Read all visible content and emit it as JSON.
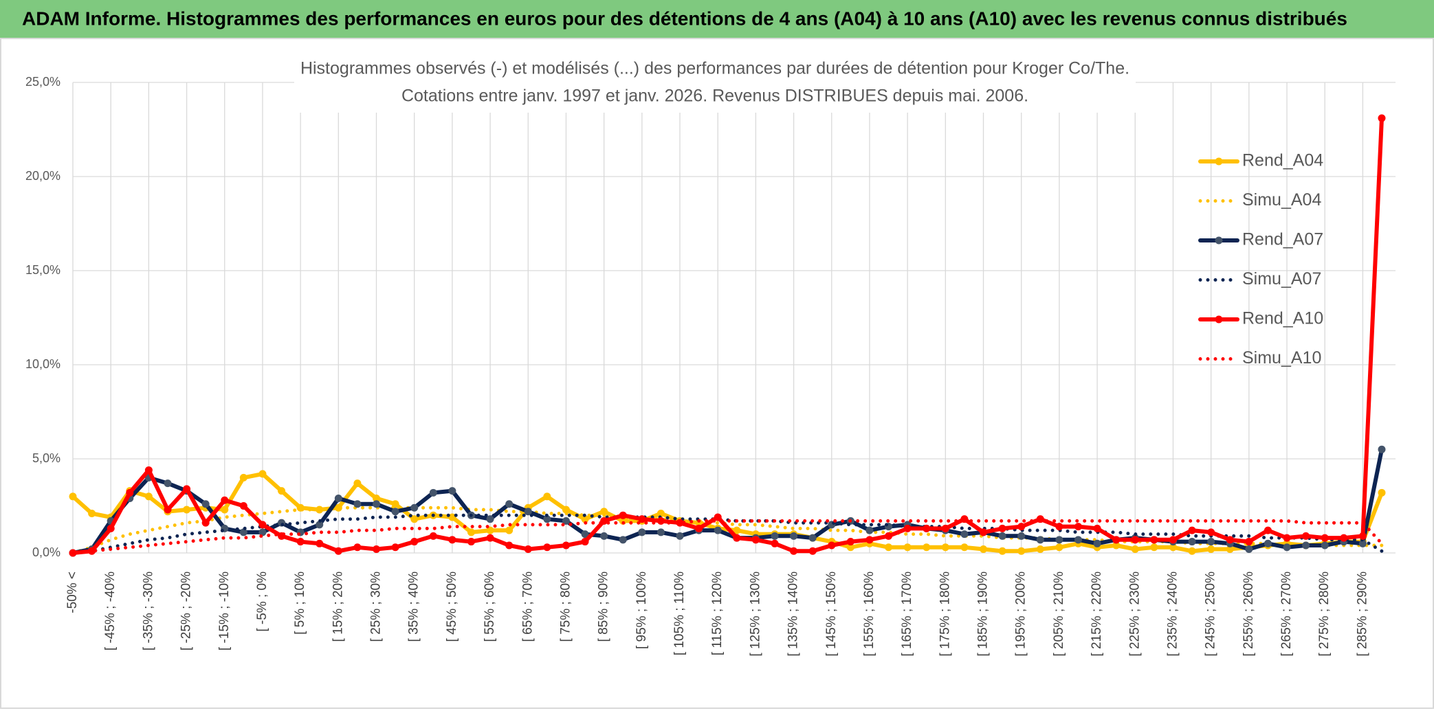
{
  "chart_data": {
    "type": "line",
    "title": "ADAM Informe. Histogrammes des performances en euros pour des détentions de 4 ans (A04) à 10 ans (A10) avec les revenus connus distribués",
    "subtitle": [
      "Histogrammes observés (-) et modélisés (...) des performances par durées de détention pour Kroger Co/The.",
      "Cotations entre janv. 1997 et janv. 2026. Revenus DISTRIBUES depuis mai. 2006."
    ],
    "categories": [
      "-50% <",
      null,
      "[ -45% ; -40%",
      null,
      "[ -35% ; -30%",
      null,
      "[ -25% ; -20%",
      null,
      "[ -15% ; -10%",
      null,
      "[ -5% ; 0%",
      null,
      "[ 5% ; 10%",
      null,
      "[ 15% ; 20%",
      null,
      "[ 25% ; 30%",
      null,
      "[ 35% ; 40%",
      null,
      "[ 45% ; 50%",
      null,
      "[ 55% ; 60%",
      null,
      "[ 65% ; 70%",
      null,
      "[ 75% ; 80%",
      null,
      "[ 85% ; 90%",
      null,
      "[ 95% ; 100%",
      null,
      "[ 105% ; 110%",
      null,
      "[ 115% ; 120%",
      null,
      "[ 125% ; 130%",
      null,
      "[ 135% ; 140%",
      null,
      "[ 145% ; 150%",
      null,
      "[ 155% ; 160%",
      null,
      "[ 165% ; 170%",
      null,
      "[ 175% ; 180%",
      null,
      "[ 185% ; 190%",
      null,
      "[ 195% ; 200%",
      null,
      "[ 205% ; 210%",
      null,
      "[ 215% ; 220%",
      null,
      "[ 225% ; 230%",
      null,
      "[ 235% ; 240%",
      null,
      "[ 245% ; 250%",
      null,
      "[ 255% ; 260%",
      null,
      "[ 265% ; 270%",
      null,
      "[ 275% ; 280%",
      null,
      "[ 285% ; 290%",
      null
    ],
    "series": [
      {
        "name": "Rend_A04",
        "color": "#ffc000",
        "style": "solid",
        "markers": true,
        "values": [
          3.0,
          2.1,
          1.9,
          3.3,
          3.0,
          2.2,
          2.3,
          2.4,
          2.3,
          4.0,
          4.2,
          3.3,
          2.4,
          2.3,
          2.4,
          3.7,
          2.9,
          2.6,
          1.8,
          2.0,
          1.9,
          1.1,
          1.2,
          1.2,
          2.4,
          3.0,
          2.3,
          1.8,
          2.2,
          1.7,
          1.7,
          2.1,
          1.7,
          1.6,
          1.3,
          1.2,
          1.0,
          1.0,
          1.0,
          0.8,
          0.6,
          0.3,
          0.5,
          0.3,
          0.3,
          0.3,
          0.3,
          0.3,
          0.2,
          0.1,
          0.1,
          0.2,
          0.3,
          0.5,
          0.3,
          0.4,
          0.2,
          0.3,
          0.3,
          0.1,
          0.2,
          0.2,
          0.3,
          0.4,
          0.5,
          0.4,
          0.5,
          0.6,
          0.6,
          3.2
        ]
      },
      {
        "name": "Simu_A04",
        "color": "#ffc000",
        "style": "dotted",
        "markers": false,
        "values": [
          0.0,
          0.3,
          0.7,
          1.0,
          1.2,
          1.4,
          1.6,
          1.7,
          1.9,
          2.0,
          2.1,
          2.2,
          2.3,
          2.3,
          2.4,
          2.4,
          2.4,
          2.4,
          2.4,
          2.4,
          2.4,
          2.3,
          2.3,
          2.2,
          2.2,
          2.1,
          2.1,
          2.0,
          2.0,
          1.9,
          1.8,
          1.8,
          1.7,
          1.6,
          1.6,
          1.5,
          1.5,
          1.4,
          1.3,
          1.3,
          1.2,
          1.2,
          1.1,
          1.1,
          1.0,
          1.0,
          0.9,
          0.9,
          0.9,
          0.8,
          0.8,
          0.8,
          0.7,
          0.7,
          0.7,
          0.6,
          0.6,
          0.6,
          0.6,
          0.5,
          0.5,
          0.5,
          0.5,
          0.5,
          0.4,
          0.4,
          0.4,
          0.4,
          0.4,
          0.4
        ]
      },
      {
        "name": "Rend_A07",
        "color": "#0d2452",
        "style": "solid",
        "markers": true,
        "values": [
          0.0,
          0.2,
          1.7,
          2.9,
          4.0,
          3.7,
          3.3,
          2.6,
          1.3,
          1.1,
          1.1,
          1.6,
          1.1,
          1.5,
          2.9,
          2.6,
          2.6,
          2.2,
          2.4,
          3.2,
          3.3,
          2.0,
          1.8,
          2.6,
          2.2,
          1.8,
          1.7,
          1.0,
          0.9,
          0.7,
          1.1,
          1.1,
          0.9,
          1.2,
          1.2,
          0.8,
          0.8,
          0.9,
          0.9,
          0.8,
          1.5,
          1.7,
          1.2,
          1.4,
          1.5,
          1.3,
          1.2,
          1.0,
          1.1,
          0.9,
          0.9,
          0.7,
          0.7,
          0.7,
          0.5,
          0.7,
          0.8,
          0.7,
          0.6,
          0.6,
          0.6,
          0.5,
          0.2,
          0.5,
          0.3,
          0.4,
          0.4,
          0.6,
          0.5,
          5.5
        ]
      },
      {
        "name": "Simu_A07",
        "color": "#0d2452",
        "style": "dotted",
        "markers": false,
        "values": [
          0.0,
          0.1,
          0.3,
          0.5,
          0.7,
          0.8,
          1.0,
          1.1,
          1.2,
          1.3,
          1.4,
          1.5,
          1.6,
          1.7,
          1.8,
          1.8,
          1.9,
          1.9,
          2.0,
          2.0,
          2.0,
          2.0,
          2.0,
          2.0,
          2.0,
          2.0,
          2.0,
          2.0,
          1.9,
          1.9,
          1.9,
          1.9,
          1.8,
          1.8,
          1.8,
          1.7,
          1.7,
          1.7,
          1.6,
          1.6,
          1.6,
          1.5,
          1.5,
          1.5,
          1.4,
          1.4,
          1.4,
          1.3,
          1.3,
          1.3,
          1.2,
          1.2,
          1.2,
          1.1,
          1.1,
          1.1,
          1.0,
          1.0,
          1.0,
          0.9,
          0.9,
          0.9,
          0.9,
          0.8,
          0.8,
          0.8,
          0.7,
          0.7,
          0.7,
          0.1
        ]
      },
      {
        "name": "Rend_A10",
        "color": "#ff0000",
        "style": "solid",
        "markers": true,
        "values": [
          0.0,
          0.1,
          1.3,
          3.2,
          4.4,
          2.3,
          3.4,
          1.6,
          2.8,
          2.5,
          1.5,
          0.9,
          0.6,
          0.5,
          0.1,
          0.3,
          0.2,
          0.3,
          0.6,
          0.9,
          0.7,
          0.6,
          0.8,
          0.4,
          0.2,
          0.3,
          0.4,
          0.6,
          1.7,
          2.0,
          1.8,
          1.7,
          1.6,
          1.3,
          1.9,
          0.8,
          0.7,
          0.5,
          0.1,
          0.1,
          0.4,
          0.6,
          0.7,
          0.9,
          1.3,
          1.3,
          1.3,
          1.8,
          1.1,
          1.3,
          1.4,
          1.8,
          1.4,
          1.4,
          1.3,
          0.7,
          0.7,
          0.7,
          0.7,
          1.2,
          1.1,
          0.7,
          0.6,
          1.2,
          0.8,
          0.9,
          0.8,
          0.8,
          0.9,
          23.1
        ]
      },
      {
        "name": "Simu_A10",
        "color": "#ff0000",
        "style": "dotted",
        "markers": false,
        "values": [
          0.0,
          0.1,
          0.2,
          0.3,
          0.4,
          0.5,
          0.6,
          0.7,
          0.8,
          0.8,
          0.9,
          1.0,
          1.0,
          1.1,
          1.1,
          1.2,
          1.2,
          1.3,
          1.3,
          1.3,
          1.4,
          1.4,
          1.4,
          1.5,
          1.5,
          1.5,
          1.5,
          1.6,
          1.6,
          1.6,
          1.6,
          1.6,
          1.6,
          1.7,
          1.7,
          1.7,
          1.7,
          1.7,
          1.7,
          1.7,
          1.7,
          1.7,
          1.7,
          1.7,
          1.7,
          1.7,
          1.7,
          1.7,
          1.7,
          1.7,
          1.7,
          1.7,
          1.7,
          1.7,
          1.7,
          1.7,
          1.7,
          1.7,
          1.7,
          1.7,
          1.7,
          1.7,
          1.7,
          1.7,
          1.7,
          1.6,
          1.6,
          1.6,
          1.6,
          0.5
        ]
      }
    ],
    "ylim": [
      0,
      25
    ],
    "yticks": [
      {
        "value": 0,
        "label": "0,0%"
      },
      {
        "value": 5,
        "label": "5,0%"
      },
      {
        "value": 10,
        "label": "10,0%"
      },
      {
        "value": 15,
        "label": "15,0%"
      },
      {
        "value": 20,
        "label": "20,0%"
      },
      {
        "value": 25,
        "label": "25,0%"
      }
    ],
    "grid": true
  }
}
